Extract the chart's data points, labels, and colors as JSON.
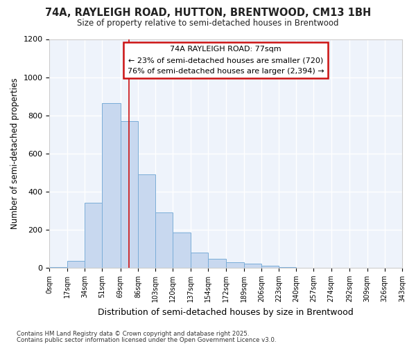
{
  "title": "74A, RAYLEIGH ROAD, HUTTON, BRENTWOOD, CM13 1BH",
  "subtitle": "Size of property relative to semi-detached houses in Brentwood",
  "xlabel": "Distribution of semi-detached houses by size in Brentwood",
  "ylabel": "Number of semi-detached properties",
  "bar_color": "#c8d8ef",
  "bar_edge_color": "#7aadd8",
  "plot_bg": "#eef3fb",
  "fig_bg": "#ffffff",
  "grid_color": "#ffffff",
  "annotation_text_line1": "74A RAYLEIGH ROAD: 77sqm",
  "annotation_text_line2": "← 23% of semi-detached houses are smaller (720)",
  "annotation_text_line3": "76% of semi-detached houses are larger (2,394) →",
  "annotation_box_edge": "#cc1111",
  "property_line_x": 77,
  "property_line_color": "#cc1111",
  "footer_line1": "Contains HM Land Registry data © Crown copyright and database right 2025.",
  "footer_line2": "Contains public sector information licensed under the Open Government Licence v3.0.",
  "bins": [
    0,
    17,
    34,
    51,
    69,
    86,
    103,
    120,
    137,
    154,
    172,
    189,
    206,
    223,
    240,
    257,
    274,
    292,
    309,
    326,
    343
  ],
  "bin_labels": [
    "0sqm",
    "17sqm",
    "34sqm",
    "51sqm",
    "69sqm",
    "86sqm",
    "103sqm",
    "120sqm",
    "137sqm",
    "154sqm",
    "172sqm",
    "189sqm",
    "206sqm",
    "223sqm",
    "240sqm",
    "257sqm",
    "274sqm",
    "292sqm",
    "309sqm",
    "326sqm",
    "343sqm"
  ],
  "counts": [
    5,
    35,
    340,
    865,
    770,
    490,
    290,
    185,
    80,
    48,
    30,
    20,
    10,
    5,
    0,
    0,
    0,
    0,
    0,
    0
  ],
  "ylim": [
    0,
    1200
  ],
  "yticks": [
    0,
    200,
    400,
    600,
    800,
    1000,
    1200
  ]
}
